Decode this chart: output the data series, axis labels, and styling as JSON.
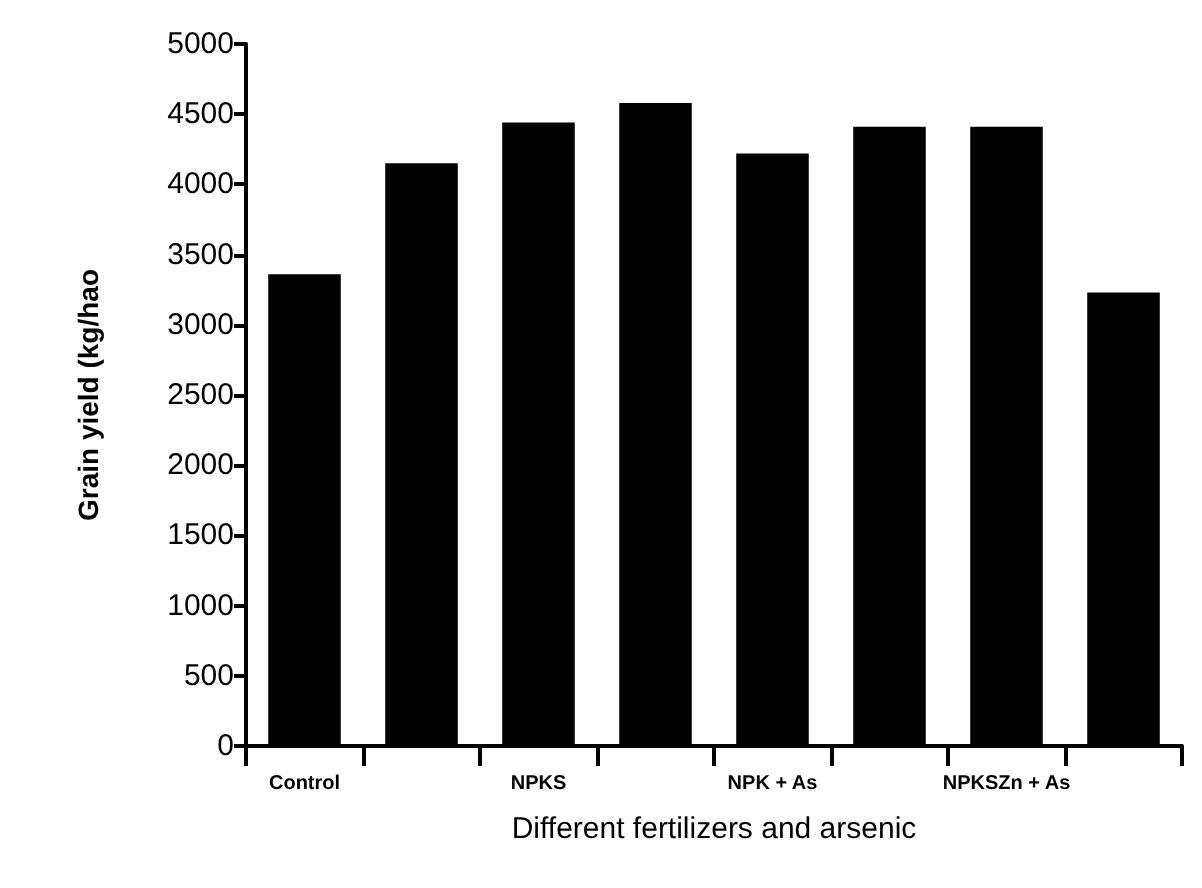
{
  "chart_data": {
    "type": "bar",
    "xlabel": "Different fertilizers and arsenic",
    "ylabel": "Grain yield (kg/hao",
    "categories": [
      "Control",
      null,
      "NPKS",
      null,
      "NPK + As",
      null,
      "NPKSZn + As",
      null
    ],
    "values": [
      3360,
      4150,
      4440,
      4580,
      4220,
      4410,
      4410,
      3230
    ],
    "color": "#000000",
    "ylim": [
      0,
      5000
    ],
    "yticks": [
      0,
      500,
      1000,
      1500,
      2000,
      2500,
      3000,
      3500,
      4000,
      4500,
      5000
    ],
    "grid": false
  }
}
